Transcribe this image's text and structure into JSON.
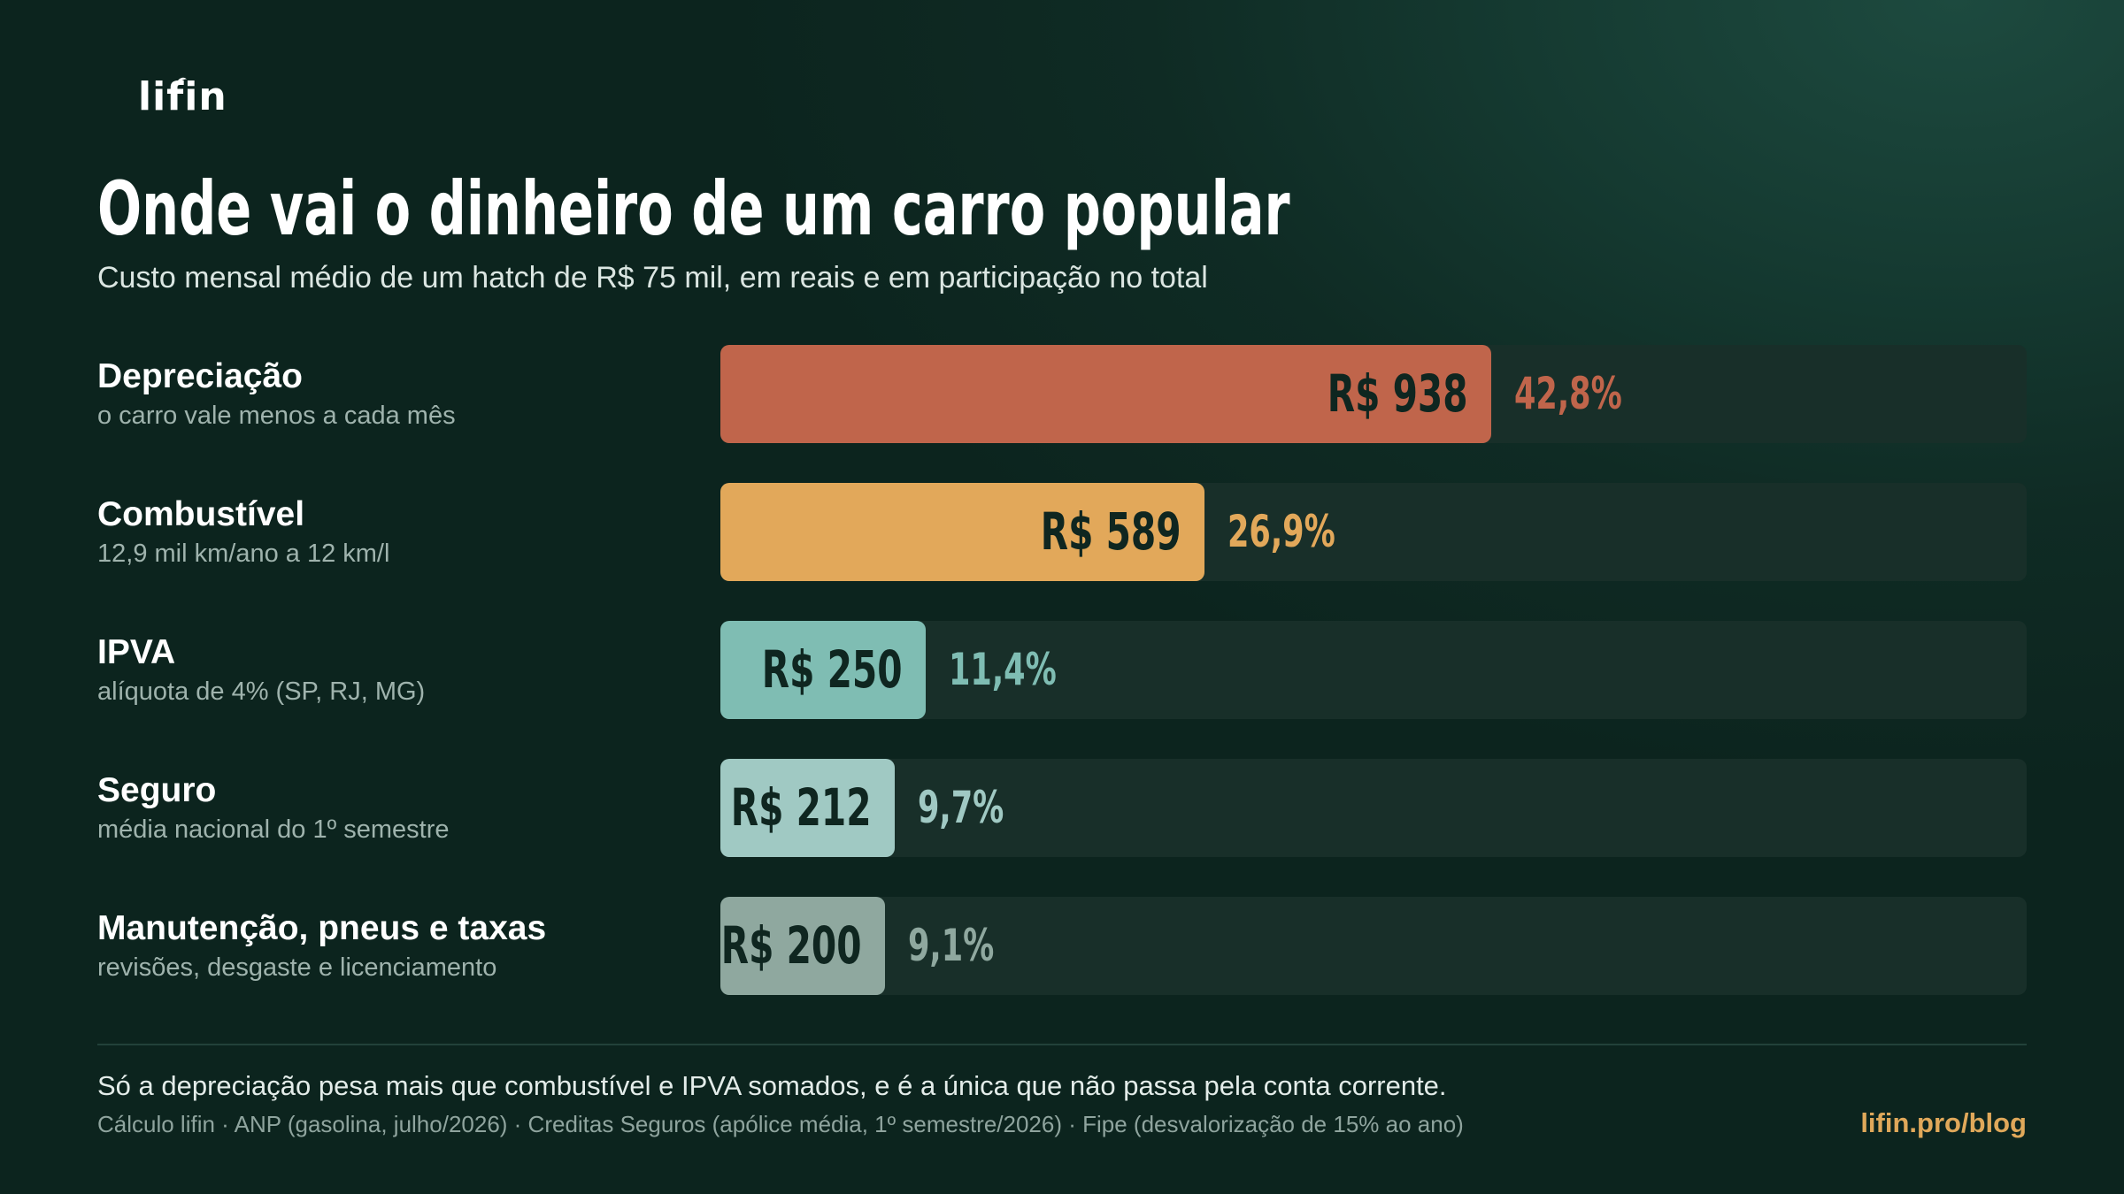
{
  "brand": {
    "logo_text": "lifin"
  },
  "colors": {
    "depreciacao": "#c0654b",
    "combustivel": "#e2a85a",
    "ipva": "#7fbdb3",
    "seguro": "#a0c9c3",
    "manutencao": "#8fa89f",
    "accent": "#e0a85a"
  },
  "chart_data": {
    "type": "bar",
    "orientation": "horizontal",
    "title": "Onde vai o dinheiro de um carro popular",
    "subtitle": "Custo mensal médio de um hatch de R$ 75 mil, em reais e em participação no total",
    "xlim": [
      0,
      1590
    ],
    "categories": [
      "Depreciação",
      "Combustível",
      "IPVA",
      "Seguro",
      "Manutenção, pneus e taxas"
    ],
    "descriptions": [
      "o carro vale menos a cada mês",
      "12,9 mil km/ano a 12 km/l",
      "alíquota de 4% (SP, RJ, MG)",
      "média nacional do 1º semestre",
      "revisões, desgaste e licenciamento"
    ],
    "values": [
      938,
      589,
      250,
      212,
      200
    ],
    "value_labels": [
      "R$ 938",
      "R$ 589",
      "R$ 250",
      "R$ 212",
      "R$ 200"
    ],
    "shares": [
      42.8,
      26.9,
      11.4,
      9.7,
      9.1
    ],
    "share_labels": [
      "42,8%",
      "26,9%",
      "11,4%",
      "9,7%",
      "9,1%"
    ],
    "bar_colors": [
      "#c0654b",
      "#e2a85a",
      "#7fbdb3",
      "#a0c9c3",
      "#8fa89f"
    ],
    "share_colors": [
      "#c0654b",
      "#e2a85a",
      "#7fbdb3",
      "#a0c9c3",
      "#8fa89f"
    ]
  },
  "footer": {
    "note": "Só a depreciação pesa mais que combustível e IPVA somados, e é a única que não passa pela conta corrente.",
    "source": "Cálculo lifin · ANP (gasolina, julho/2026) · Creditas Seguros (apólice média, 1º semestre/2026) · Fipe (desvalorização de 15% ao ano)",
    "site": "lifin.pro/blog"
  }
}
